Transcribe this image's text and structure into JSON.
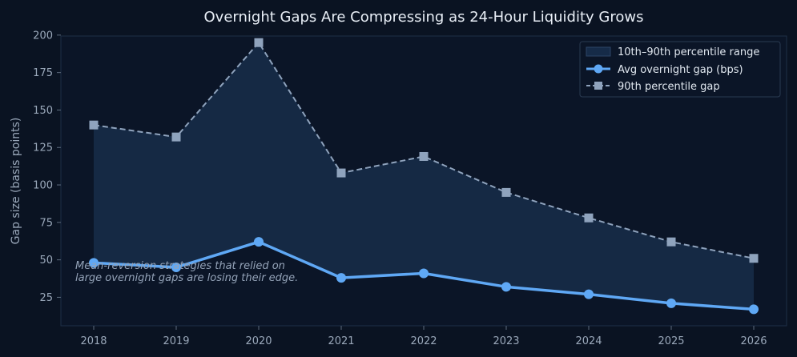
{
  "chart_data": {
    "type": "line",
    "title": "Overnight Gaps Are Compressing as 24-Hour Liquidity Grows",
    "xlabel": "",
    "ylabel": "Gap size (basis points)",
    "x": [
      "2018",
      "2019",
      "2020",
      "2021",
      "2022",
      "2023",
      "2024",
      "2025",
      "2026"
    ],
    "ylim": [
      10,
      205
    ],
    "yticks": [
      25,
      50,
      75,
      100,
      125,
      150,
      175,
      200
    ],
    "grid": false,
    "legend_position": "top-right",
    "series": [
      {
        "name": "Avg overnight gap (bps)",
        "values": [
          48,
          45,
          62,
          38,
          41,
          32,
          27,
          21,
          17
        ],
        "color": "#5fa8f5",
        "marker": "circle",
        "style": "solid"
      },
      {
        "name": "90th percentile gap",
        "values": [
          140,
          132,
          195,
          108,
          119,
          95,
          78,
          62,
          51
        ],
        "color": "#8fa3bd",
        "marker": "square",
        "style": "dashed"
      }
    ],
    "band": {
      "name": "10th–90th percentile range",
      "color": "#162b48",
      "lower_series": "Avg overnight gap (bps)",
      "upper_series": "90th percentile gap"
    },
    "annotation": {
      "lines": [
        "Mean-reversion strategies that relied on",
        "large overnight gaps are losing their edge."
      ],
      "x": "2018",
      "y": 45
    }
  }
}
